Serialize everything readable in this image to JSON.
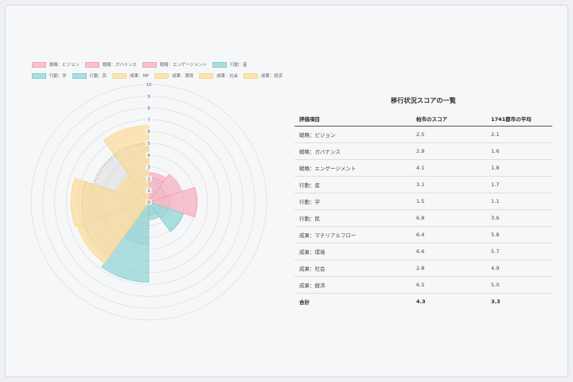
{
  "chart_data": [
    {
      "type": "polarArea",
      "categories": [
        "戦略：ビジョン",
        "戦略：ガバナンス",
        "戦略：エンゲージメント",
        "行動：産",
        "行動：学",
        "行動：民",
        "成果：MF",
        "成果：環境",
        "成果：社会",
        "成果：経済"
      ],
      "series": [
        {
          "values": [
            2.5,
            2.9,
            4.1,
            3.1,
            1.5,
            6.8,
            6.4,
            6.6,
            2.8,
            6.5
          ]
        },
        {
          "values": [
            2.1,
            1.6,
            1.8,
            1.7,
            1.1,
            3.6,
            5.8,
            5.7,
            4.9,
            5.0
          ]
        }
      ],
      "radial_range": [
        0,
        10
      ],
      "ticks": [
        "0",
        "1",
        "2",
        "3",
        "4",
        "5",
        "6",
        "7",
        "8",
        "9",
        "10"
      ],
      "legend_position": "top",
      "colors": {
        "strategy": "#f7a1b5",
        "action": "#80cfcf",
        "outcome": "#fbd88a",
        "average": "#cccccc"
      }
    },
    {
      "type": "table",
      "title": "移行状況スコアの一覧",
      "columns": [
        "評価項目",
        "柏市のスコア",
        "1741都市の平均"
      ],
      "rows": [
        [
          "戦略：ビジョン",
          "2.5",
          "2.1"
        ],
        [
          "戦略：ガバナンス",
          "2.9",
          "1.6"
        ],
        [
          "戦略：エンゲージメント",
          "4.1",
          "1.8"
        ],
        [
          "行動：産",
          "3.1",
          "1.7"
        ],
        [
          "行動：学",
          "1.5",
          "1.1"
        ],
        [
          "行動：民",
          "6.8",
          "3.6"
        ],
        [
          "成果：マテリアルフロー",
          "6.4",
          "5.8"
        ],
        [
          "成果：環境",
          "6.6",
          "5.7"
        ],
        [
          "成果：社会",
          "2.8",
          "4.9"
        ],
        [
          "成果：経済",
          "6.5",
          "5.0"
        ]
      ],
      "total": [
        "合計",
        "4.3",
        "3.3"
      ]
    }
  ]
}
